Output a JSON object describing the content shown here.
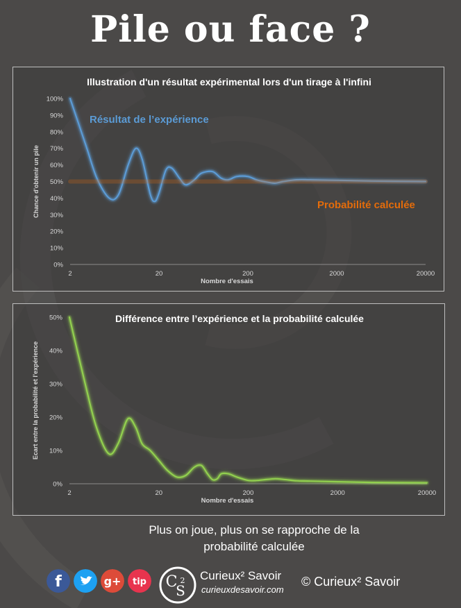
{
  "page": {
    "title": "Pile ou face ?",
    "footer_line1": "Plus on joue, plus on se rapproche de la",
    "footer_line2": "probabilité calculée",
    "brand_name": "Curieux² Savoir",
    "brand_url": "curieuxdesavoir.com",
    "copyright": "© Curieux² Savoir",
    "logo_letters": "C S 2"
  },
  "social": [
    {
      "name": "facebook",
      "glyph": "f",
      "color": "#3b5998"
    },
    {
      "name": "twitter",
      "glyph": "t",
      "color": "#1da1f2"
    },
    {
      "name": "google-plus",
      "glyph": "g+",
      "color": "#dd4b39"
    },
    {
      "name": "tip",
      "glyph": "tip",
      "color": "#e8344e"
    }
  ],
  "chart_data": [
    {
      "type": "line",
      "title": "Illustration d'un résultat expérimental lors d'un tirage à l'infini",
      "xlabel": "Nombre d'essais",
      "ylabel": "Chance d'obtenir un pile",
      "x_scale": "log",
      "x_ticks": [
        2,
        20,
        200,
        2000,
        20000
      ],
      "x_tick_labels": [
        "2",
        "20",
        "200",
        "2000",
        "20000"
      ],
      "ylim": [
        0,
        100
      ],
      "y_ticks": [
        0,
        10,
        20,
        30,
        40,
        50,
        60,
        70,
        80,
        90,
        100
      ],
      "y_tick_labels": [
        "0%",
        "10%",
        "20%",
        "30%",
        "40%",
        "50%",
        "60%",
        "70%",
        "80%",
        "90%",
        "100%"
      ],
      "grid": false,
      "series": [
        {
          "name": "Résultat de l’expérience",
          "color": "#5b9bd5",
          "x": [
            2,
            3,
            4,
            5.5,
            7,
            9,
            11,
            13,
            16,
            18,
            20,
            24,
            28,
            34,
            40,
            50,
            60,
            80,
            100,
            120,
            150,
            200,
            250,
            300,
            400,
            500,
            700,
            1000,
            2000,
            5000,
            20000
          ],
          "y": [
            100,
            72,
            52,
            40,
            42,
            60,
            70,
            63,
            42,
            38,
            43,
            57,
            58,
            52,
            48,
            51,
            55,
            56,
            52,
            51,
            53,
            53,
            51,
            50,
            49,
            50,
            51,
            51,
            50.7,
            50.3,
            50
          ]
        },
        {
          "name": "Probabilité calculée",
          "color": "#e46c0a",
          "x": [
            2,
            20000
          ],
          "y": [
            50,
            50
          ]
        }
      ]
    },
    {
      "type": "line",
      "title": "Différence entre l’expérience et la probabilité calculée",
      "xlabel": "Nombre d'essais",
      "ylabel": "Ecart entre la probabilité et l'expérience",
      "x_scale": "log",
      "x_ticks": [
        2,
        20,
        200,
        2000,
        20000
      ],
      "x_tick_labels": [
        "2",
        "20",
        "200",
        "2000",
        "20000"
      ],
      "ylim": [
        0,
        50
      ],
      "y_ticks": [
        0,
        10,
        20,
        30,
        40,
        50
      ],
      "y_tick_labels": [
        "0%",
        "10%",
        "20%",
        "30%",
        "40%",
        "50%"
      ],
      "grid": false,
      "series": [
        {
          "name": "Ecart",
          "color": "#92d050",
          "x": [
            2,
            3,
            4,
            5.5,
            7,
            9,
            11,
            13,
            16,
            20,
            25,
            32,
            40,
            50,
            60,
            70,
            80,
            90,
            100,
            120,
            150,
            200,
            250,
            300,
            400,
            500,
            700,
            1000,
            2000,
            5000,
            20000
          ],
          "y": [
            50,
            30,
            17,
            9,
            12,
            19.5,
            17,
            12,
            10,
            7,
            4,
            2,
            2.5,
            5,
            5.5,
            3,
            1.2,
            1.5,
            3,
            3,
            2,
            1,
            1,
            1.2,
            1.5,
            1.3,
            0.9,
            0.8,
            0.6,
            0.4,
            0.3
          ]
        }
      ]
    }
  ]
}
